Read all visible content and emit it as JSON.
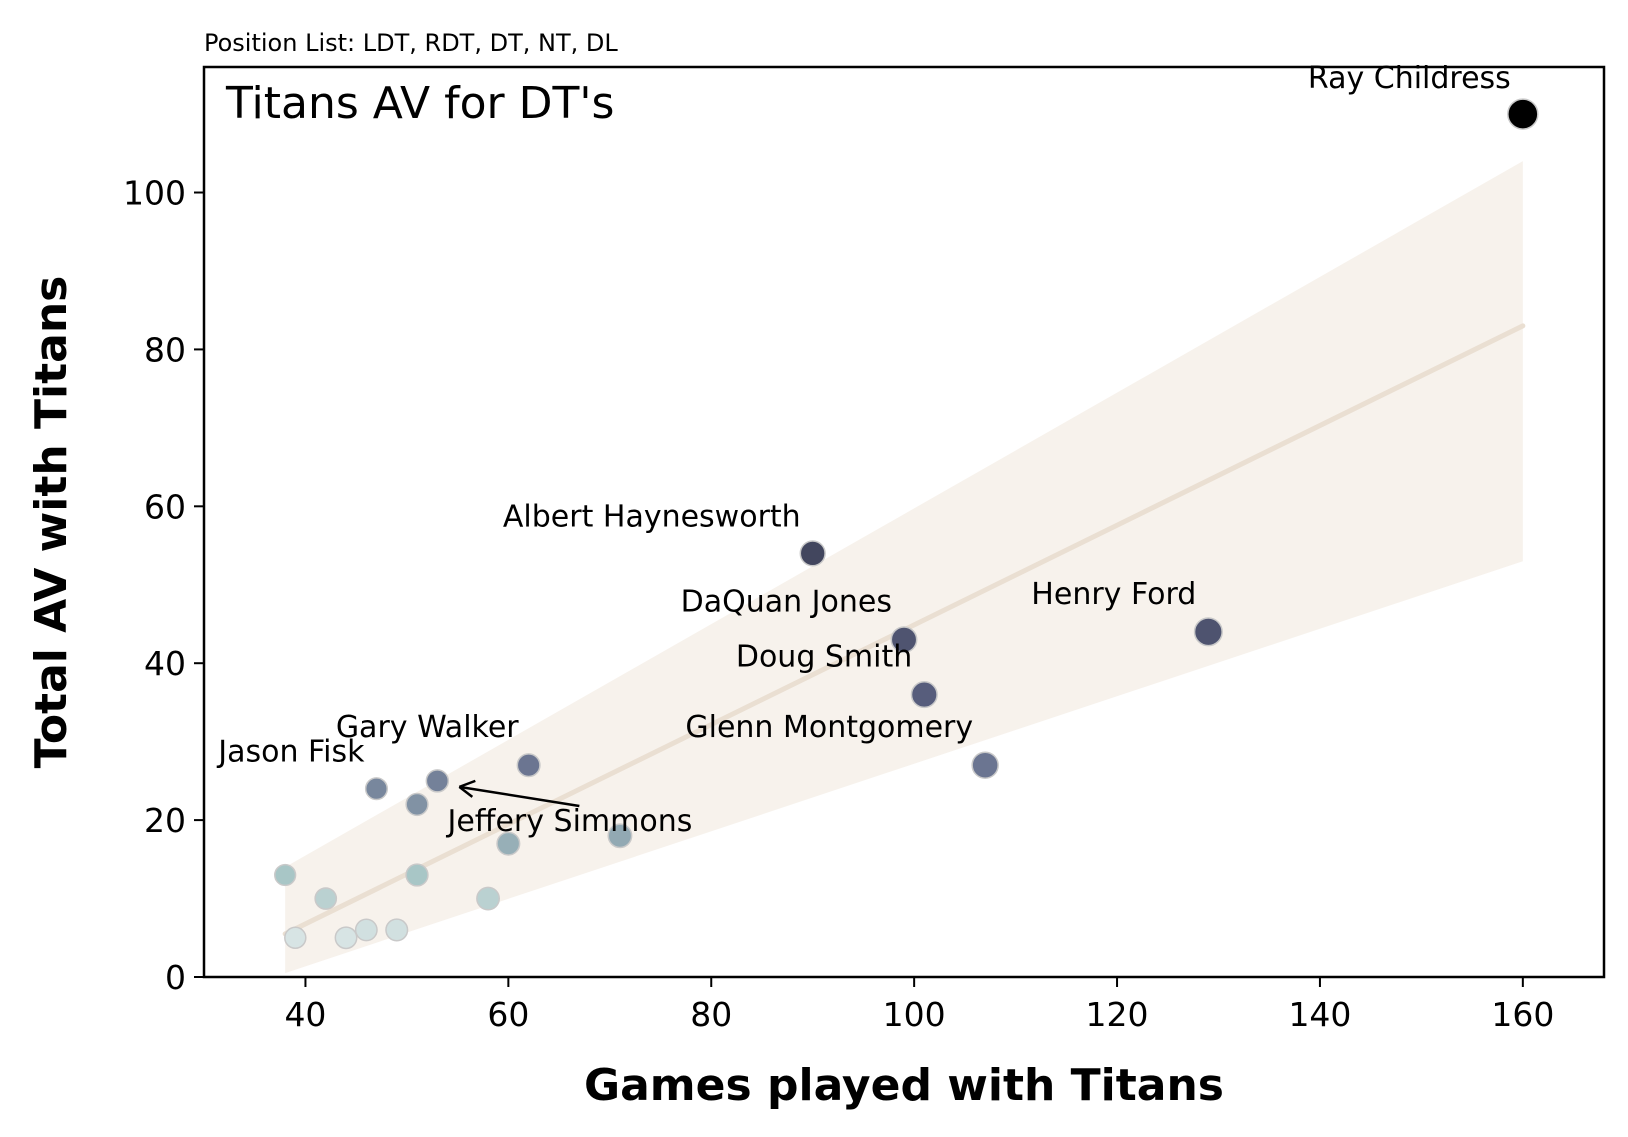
{
  "chart_data": {
    "type": "scatter",
    "subtitle": "Position List: LDT, RDT, DT, NT, DL",
    "title": "Titans AV for DT's",
    "xlabel": "Games played with Titans",
    "ylabel": "Total AV with Titans",
    "xlim": [
      30,
      168
    ],
    "ylim": [
      0,
      116
    ],
    "xticks": [
      40,
      60,
      80,
      100,
      120,
      140,
      160
    ],
    "yticks": [
      0,
      20,
      40,
      60,
      80,
      100
    ],
    "grid": false,
    "legend": "none",
    "points": [
      {
        "x": 160,
        "y": 110,
        "label": "Ray Childress"
      },
      {
        "x": 90,
        "y": 54,
        "label": "Albert Haynesworth"
      },
      {
        "x": 99,
        "y": 43,
        "label": "DaQuan Jones"
      },
      {
        "x": 129,
        "y": 44,
        "label": "Henry Ford"
      },
      {
        "x": 101,
        "y": 36,
        "label": "Doug Smith"
      },
      {
        "x": 107,
        "y": 27,
        "label": "Glenn Montgomery"
      },
      {
        "x": 62,
        "y": 27,
        "label": "Gary Walker"
      },
      {
        "x": 47,
        "y": 24,
        "label": "Jason Fisk"
      },
      {
        "x": 53,
        "y": 25,
        "label": "Jeffery Simmons"
      },
      {
        "x": 51,
        "y": 22,
        "label": ""
      },
      {
        "x": 71,
        "y": 18,
        "label": ""
      },
      {
        "x": 60,
        "y": 17,
        "label": ""
      },
      {
        "x": 38,
        "y": 13,
        "label": ""
      },
      {
        "x": 51,
        "y": 13,
        "label": ""
      },
      {
        "x": 42,
        "y": 10,
        "label": ""
      },
      {
        "x": 58,
        "y": 10,
        "label": ""
      },
      {
        "x": 46,
        "y": 6,
        "label": ""
      },
      {
        "x": 49,
        "y": 6,
        "label": ""
      },
      {
        "x": 39,
        "y": 5,
        "label": ""
      },
      {
        "x": 44,
        "y": 5,
        "label": ""
      }
    ],
    "regression": {
      "x": [
        38,
        160
      ],
      "y": [
        5.5,
        83
      ],
      "band_lower": [
        0.5,
        53
      ],
      "band_upper": [
        14,
        104
      ],
      "color": "#eadfd2"
    },
    "colors": {
      "dark": "#000000",
      "mid": "#5e6486",
      "light": "#a8c6c6",
      "pale": "#f5f7f7",
      "band": "#f7f2ec"
    }
  }
}
